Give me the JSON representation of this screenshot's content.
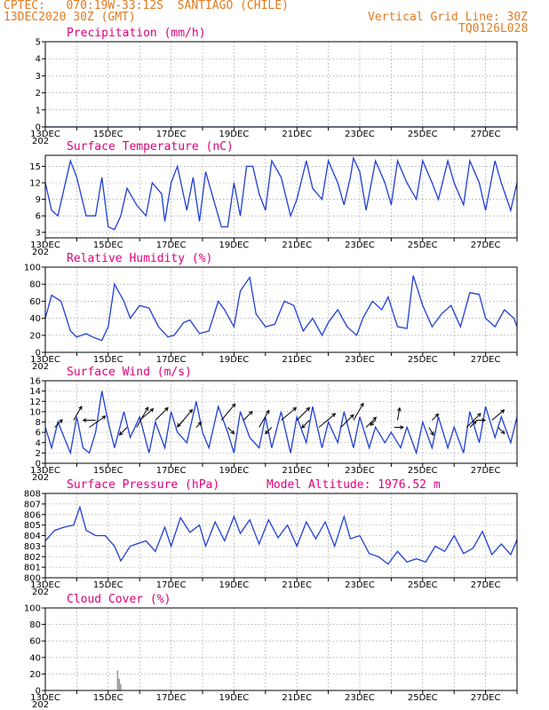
{
  "header": {
    "line1_left": "CPTEC:   070:19W-33:12S  SANTIAGO (CHILE)",
    "line2_left": "13DEC2020 30Z (GMT)",
    "line2_right": "Vertical Grid Line: 30Z",
    "line3_right": "TQ0126L028"
  },
  "colors": {
    "header": "#e07b20",
    "title": "#e0007a",
    "series": "#1f3fd6",
    "wind_arrow": "#000000",
    "cloud_bar": "#9a9a9a"
  },
  "x_tick_labels": [
    "13DEC",
    "15DEC",
    "17DEC",
    "19DEC",
    "21DEC",
    "23DEC",
    "25DEC",
    "27DEC"
  ],
  "x_tick_stub": "202",
  "chart_data": [
    {
      "type": "line",
      "title": "Precipitation (mm/h)",
      "ylim": [
        0,
        5
      ],
      "yticks": [
        0,
        1,
        2,
        3,
        4,
        5
      ],
      "x": [
        13,
        28
      ],
      "values": [
        0,
        0
      ],
      "grid": true
    },
    {
      "type": "line",
      "title": "Surface Temperature (nC)",
      "ylim": [
        2,
        17
      ],
      "yticks": [
        3,
        6,
        9,
        12,
        15
      ],
      "x": [
        13.0,
        13.2,
        13.4,
        13.6,
        13.8,
        14.0,
        14.3,
        14.6,
        14.8,
        15.0,
        15.2,
        15.4,
        15.6,
        15.9,
        16.2,
        16.4,
        16.7,
        16.8,
        17.0,
        17.2,
        17.5,
        17.7,
        17.9,
        18.1,
        18.3,
        18.6,
        18.8,
        19.0,
        19.2,
        19.4,
        19.6,
        19.8,
        20.0,
        20.2,
        20.5,
        20.8,
        21.0,
        21.3,
        21.5,
        21.8,
        22.0,
        22.3,
        22.5,
        22.7,
        22.8,
        23.0,
        23.2,
        23.5,
        23.8,
        24.0,
        24.2,
        24.5,
        24.8,
        25.0,
        25.3,
        25.5,
        25.8,
        26.0,
        26.3,
        26.5,
        26.8,
        27.0,
        27.3,
        27.5,
        27.8,
        28.0
      ],
      "values": [
        12,
        7,
        6,
        11,
        16,
        13,
        6,
        6,
        13,
        4,
        3.5,
        6,
        11,
        8,
        6,
        12,
        10,
        5,
        12,
        15,
        7,
        13,
        5,
        14,
        10,
        4,
        4,
        12,
        6,
        15,
        15,
        10,
        7,
        16,
        13,
        6,
        9,
        16,
        11,
        9,
        16,
        12,
        8,
        13,
        16.5,
        14,
        7,
        16,
        12,
        8,
        16,
        12,
        9,
        16,
        12,
        9,
        16,
        12,
        8,
        16,
        12,
        7,
        16,
        12,
        7,
        12
      ],
      "grid": true
    },
    {
      "type": "line",
      "title": "Relative Humidity (%)",
      "ylim": [
        0,
        100
      ],
      "yticks": [
        0,
        20,
        40,
        60,
        80,
        100
      ],
      "x": [
        13.0,
        13.2,
        13.5,
        13.8,
        14.0,
        14.3,
        14.5,
        14.8,
        15.0,
        15.2,
        15.5,
        15.7,
        16.0,
        16.3,
        16.6,
        16.9,
        17.1,
        17.4,
        17.6,
        17.9,
        18.2,
        18.5,
        18.7,
        19.0,
        19.2,
        19.5,
        19.7,
        20.0,
        20.3,
        20.6,
        20.9,
        21.2,
        21.5,
        21.8,
        22.0,
        22.3,
        22.6,
        22.9,
        23.1,
        23.4,
        23.7,
        23.9,
        24.2,
        24.5,
        24.7,
        25.0,
        25.3,
        25.6,
        25.9,
        26.2,
        26.5,
        26.8,
        27.0,
        27.3,
        27.6,
        27.9,
        28.0
      ],
      "values": [
        40,
        67,
        60,
        25,
        18,
        22,
        18,
        14,
        30,
        80,
        60,
        40,
        55,
        52,
        30,
        18,
        20,
        35,
        38,
        22,
        25,
        60,
        50,
        30,
        72,
        88,
        45,
        30,
        33,
        60,
        55,
        25,
        40,
        20,
        35,
        50,
        30,
        20,
        40,
        60,
        50,
        65,
        30,
        28,
        90,
        55,
        30,
        45,
        55,
        30,
        70,
        68,
        40,
        30,
        50,
        40,
        30
      ],
      "grid": true
    },
    {
      "type": "line",
      "title": "Surface Wind (m/s)",
      "ylim": [
        0,
        16
      ],
      "yticks": [
        0,
        2,
        4,
        6,
        8,
        10,
        12,
        14,
        16
      ],
      "x": [
        13.0,
        13.2,
        13.4,
        13.6,
        13.8,
        14.0,
        14.2,
        14.4,
        14.6,
        14.8,
        15.0,
        15.2,
        15.5,
        15.7,
        16.0,
        16.3,
        16.5,
        16.8,
        17.0,
        17.2,
        17.5,
        17.8,
        18.0,
        18.2,
        18.5,
        18.8,
        19.0,
        19.2,
        19.5,
        19.8,
        20.0,
        20.2,
        20.5,
        20.8,
        21.0,
        21.3,
        21.5,
        21.8,
        22.0,
        22.3,
        22.5,
        22.8,
        23.0,
        23.3,
        23.5,
        23.8,
        24.0,
        24.3,
        24.5,
        24.8,
        25.0,
        25.3,
        25.5,
        25.8,
        26.0,
        26.3,
        26.5,
        26.8,
        27.0,
        27.3,
        27.5,
        27.8,
        28.0
      ],
      "values": [
        7,
        3,
        8,
        5,
        2,
        9,
        3,
        2,
        6,
        14,
        8,
        3,
        10,
        5,
        9,
        2,
        8,
        3,
        10,
        6,
        4,
        12,
        6,
        3,
        11,
        6,
        2,
        10,
        5,
        3,
        9,
        3,
        10,
        2,
        9,
        4,
        11,
        3,
        8,
        4,
        10,
        3,
        9,
        3,
        7,
        4,
        6,
        3,
        7,
        2,
        8,
        3,
        9,
        3,
        7,
        2,
        10,
        4,
        11,
        5,
        9,
        4,
        9
      ],
      "arrows": [
        {
          "day": 13.3,
          "dir_deg": 45,
          "len": 12
        },
        {
          "day": 13.9,
          "dir_deg": 60,
          "len": 18
        },
        {
          "day": 14.4,
          "dir_deg": 35,
          "len": 22
        },
        {
          "day": 14.6,
          "dir_deg": 180,
          "len": 14
        },
        {
          "day": 15.6,
          "dir_deg": 225,
          "len": 12
        },
        {
          "day": 16.0,
          "dir_deg": 40,
          "len": 20
        },
        {
          "day": 15.9,
          "dir_deg": 60,
          "len": 26
        },
        {
          "day": 16.5,
          "dir_deg": 45,
          "len": 20
        },
        {
          "day": 17.2,
          "dir_deg": 50,
          "len": 26
        },
        {
          "day": 17.4,
          "dir_deg": 225,
          "len": 10
        },
        {
          "day": 17.8,
          "dir_deg": 45,
          "len": 8
        },
        {
          "day": 18.6,
          "dir_deg": 50,
          "len": 24
        },
        {
          "day": 18.8,
          "dir_deg": 315,
          "len": 10
        },
        {
          "day": 19.3,
          "dir_deg": 45,
          "len": 14
        },
        {
          "day": 19.8,
          "dir_deg": 60,
          "len": 22
        },
        {
          "day": 20.5,
          "dir_deg": 40,
          "len": 22
        },
        {
          "day": 20.2,
          "dir_deg": 225,
          "len": 10
        },
        {
          "day": 21.0,
          "dir_deg": 45,
          "len": 20
        },
        {
          "day": 21.7,
          "dir_deg": 40,
          "len": 24
        },
        {
          "day": 21.4,
          "dir_deg": 225,
          "len": 12
        },
        {
          "day": 22.4,
          "dir_deg": 45,
          "len": 20
        },
        {
          "day": 22.8,
          "dir_deg": 60,
          "len": 22
        },
        {
          "day": 23.2,
          "dir_deg": 45,
          "len": 16
        },
        {
          "day": 23.5,
          "dir_deg": 225,
          "len": 8
        },
        {
          "day": 24.1,
          "dir_deg": 0,
          "len": 10
        },
        {
          "day": 24.2,
          "dir_deg": 80,
          "len": 14
        },
        {
          "day": 25.2,
          "dir_deg": 300,
          "len": 10
        },
        {
          "day": 25.3,
          "dir_deg": 45,
          "len": 10
        },
        {
          "day": 26.4,
          "dir_deg": 45,
          "len": 22
        },
        {
          "day": 26.7,
          "dir_deg": 0,
          "len": 10
        },
        {
          "day": 26.5,
          "dir_deg": 45,
          "len": 10
        },
        {
          "day": 27.2,
          "dir_deg": 40,
          "len": 18
        },
        {
          "day": 27.4,
          "dir_deg": 315,
          "len": 10
        }
      ],
      "grid": true
    },
    {
      "type": "line",
      "title": "Surface Pressure (hPa)",
      "annotation": "Model Altitude: 1976.52 m",
      "ylim": [
        800,
        808
      ],
      "yticks": [
        800,
        801,
        802,
        803,
        804,
        805,
        806,
        807,
        808
      ],
      "x": [
        13.0,
        13.3,
        13.6,
        13.9,
        14.1,
        14.3,
        14.6,
        14.9,
        15.2,
        15.4,
        15.7,
        16.0,
        16.2,
        16.5,
        16.8,
        17.0,
        17.3,
        17.6,
        17.9,
        18.1,
        18.4,
        18.7,
        19.0,
        19.2,
        19.5,
        19.8,
        20.1,
        20.4,
        20.7,
        21.0,
        21.3,
        21.6,
        21.9,
        22.2,
        22.5,
        22.7,
        23.0,
        23.3,
        23.6,
        23.9,
        24.2,
        24.5,
        24.8,
        25.1,
        25.4,
        25.7,
        26.0,
        26.3,
        26.6,
        26.9,
        27.2,
        27.5,
        27.8,
        28.0
      ],
      "values": [
        803.5,
        804.5,
        804.8,
        805,
        806.7,
        804.5,
        804,
        804,
        803,
        801.6,
        803,
        803.3,
        803.5,
        802.5,
        804.8,
        803,
        805.7,
        804.3,
        805,
        803,
        805.3,
        803.5,
        805.8,
        804.2,
        805.5,
        803.2,
        805.5,
        803.8,
        805,
        803,
        805.3,
        803.7,
        805.3,
        803,
        805.8,
        803.7,
        804,
        802.3,
        802,
        801.3,
        802.5,
        801.5,
        801.8,
        801.5,
        803,
        802.5,
        804,
        802.3,
        802.8,
        804.4,
        802.2,
        803.2,
        802.2,
        803.6
      ],
      "grid": true
    },
    {
      "type": "bar",
      "title": "Cloud Cover (%)",
      "ylim": [
        0,
        100
      ],
      "yticks": [
        0,
        20,
        40,
        60,
        80,
        100
      ],
      "bars": [
        {
          "day": 15.3,
          "value": 24
        },
        {
          "day": 15.35,
          "value": 14
        },
        {
          "day": 15.4,
          "value": 8
        }
      ],
      "grid": true
    }
  ]
}
